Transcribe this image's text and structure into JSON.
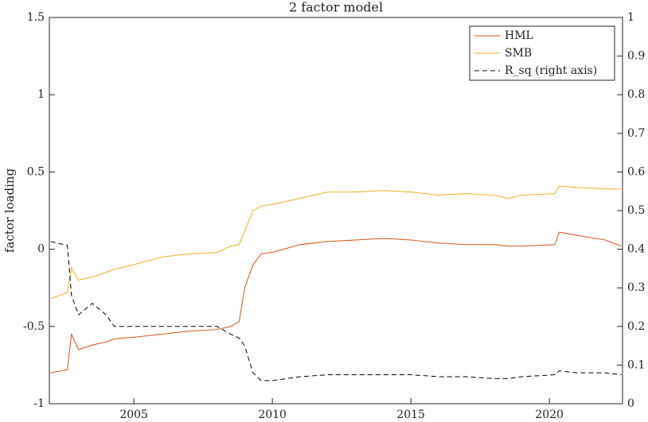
{
  "chart_data": {
    "type": "line",
    "title": "2 factor model",
    "ylabel": "factor loading",
    "x": [
      2002,
      2002.6,
      2002.75,
      2003,
      2003.5,
      2004,
      2004.3,
      2005,
      2006,
      2007,
      2008,
      2008.5,
      2008.8,
      2009,
      2009.3,
      2009.6,
      2010,
      2011,
      2012,
      2013,
      2014,
      2015,
      2016,
      2017,
      2018,
      2018.5,
      2019,
      2020.2,
      2020.35,
      2021,
      2022,
      2022.6
    ],
    "series": [
      {
        "name": "HML",
        "color": "#d95319",
        "values": [
          -0.8,
          -0.78,
          -0.55,
          -0.65,
          -0.62,
          -0.6,
          -0.58,
          -0.57,
          -0.55,
          -0.53,
          -0.52,
          -0.5,
          -0.47,
          -0.25,
          -0.1,
          -0.03,
          -0.02,
          0.03,
          0.05,
          0.06,
          0.07,
          0.06,
          0.04,
          0.03,
          0.03,
          0.02,
          0.02,
          0.03,
          0.11,
          0.09,
          0.06,
          0.02
        ]
      },
      {
        "name": "SMB",
        "color": "#edb120",
        "values": [
          -0.32,
          -0.28,
          -0.12,
          -0.2,
          -0.18,
          -0.15,
          -0.13,
          -0.1,
          -0.05,
          -0.03,
          -0.02,
          0.02,
          0.03,
          0.12,
          0.25,
          0.28,
          0.29,
          0.33,
          0.37,
          0.37,
          0.38,
          0.37,
          0.35,
          0.36,
          0.35,
          0.33,
          0.35,
          0.36,
          0.41,
          0.4,
          0.39,
          0.39
        ]
      },
      {
        "name": "R_sq (right axis)",
        "color": "#000000",
        "line_style": "dashed",
        "axis": "y2",
        "values": [
          0.42,
          0.41,
          0.28,
          0.23,
          0.26,
          0.23,
          0.2,
          0.2,
          0.2,
          0.2,
          0.2,
          0.18,
          0.17,
          0.15,
          0.08,
          0.06,
          0.06,
          0.07,
          0.075,
          0.075,
          0.075,
          0.075,
          0.07,
          0.07,
          0.065,
          0.065,
          0.07,
          0.075,
          0.085,
          0.08,
          0.08,
          0.075
        ]
      }
    ],
    "xlim": [
      2001.95,
      2022.64
    ],
    "xticks": [
      2005,
      2010,
      2015,
      2020
    ],
    "ylim": [
      -1,
      1.5
    ],
    "yticks": [
      -1,
      -0.5,
      0,
      0.5,
      1,
      1.5
    ],
    "y2lim": [
      0,
      1
    ],
    "y2ticks": [
      0,
      0.1,
      0.2,
      0.3,
      0.4,
      0.5,
      0.6,
      0.7,
      0.8,
      0.9,
      1
    ],
    "legend": "top-right",
    "grid": false
  }
}
